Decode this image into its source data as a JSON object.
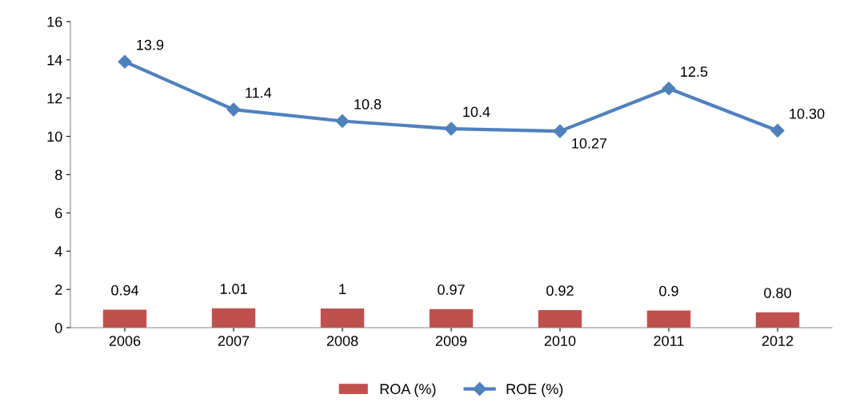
{
  "chart_data": {
    "type": "bar",
    "categories": [
      "2006",
      "2007",
      "2008",
      "2009",
      "2010",
      "2011",
      "2012"
    ],
    "series": [
      {
        "name": "ROA (%)",
        "color": "#c0504d",
        "values": [
          0.94,
          1.01,
          1,
          0.97,
          0.92,
          0.9,
          0.8
        ],
        "value_labels": [
          "0.94",
          "1.01",
          "1",
          "0.97",
          "0.92",
          "0.9",
          "0.80"
        ]
      },
      {
        "name": "ROE (%)",
        "type": "line",
        "color": "#4f81bd",
        "marker": "diamond",
        "line_style": "solid",
        "values": [
          13.9,
          11.4,
          10.8,
          10.4,
          10.27,
          12.5,
          10.3
        ],
        "value_labels": [
          "13.9",
          "11.4",
          "10.8",
          "10.4",
          "10.27",
          "12.5",
          "10.30"
        ]
      }
    ],
    "ylim": [
      0,
      16
    ],
    "yticks": [
      0,
      2,
      4,
      6,
      8,
      10,
      12,
      14,
      16
    ],
    "grid": false,
    "legend": "bottom"
  }
}
